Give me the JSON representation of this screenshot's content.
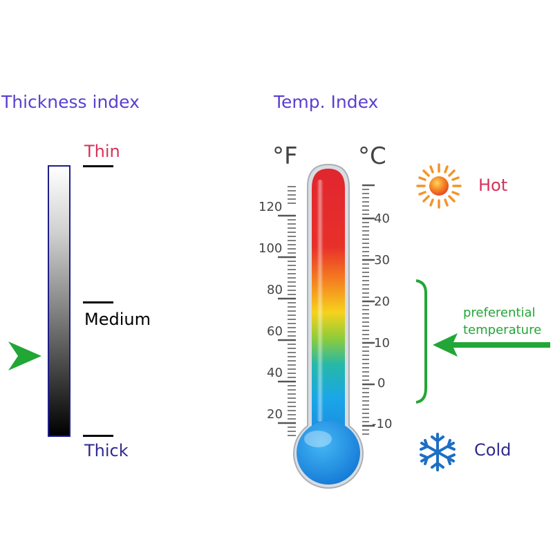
{
  "thickness": {
    "heading": "Thickness index",
    "levels": {
      "thin": "Thin",
      "medium": "Medium",
      "thick": "Thick"
    },
    "indicator_level": 0.78
  },
  "temperature": {
    "heading": "Temp. Index",
    "fahrenheit_unit": "°F",
    "celsius_unit": "°C",
    "fahrenheit_labels": [
      "120",
      "100",
      "80",
      "60",
      "40",
      "20"
    ],
    "celsius_labels": [
      "40",
      "30",
      "20",
      "10",
      "0",
      "-10"
    ],
    "hot_label": "Hot",
    "cold_label": "Cold",
    "preferential_line1": "preferential",
    "preferential_line2": "temperature"
  },
  "colors": {
    "heading": "#5a3fd0",
    "thin": "#d6315a",
    "thick": "#2f2a8f",
    "hot": "#d6315a",
    "cold": "#2f2a8f",
    "accent_green": "#22a636",
    "bar_border": "#1d1d8a"
  },
  "icons": {
    "sun": "sun-icon",
    "snowflake": "snowflake-icon",
    "arrow": "arrow-left-icon",
    "pointer": "pointer-right-icon"
  }
}
